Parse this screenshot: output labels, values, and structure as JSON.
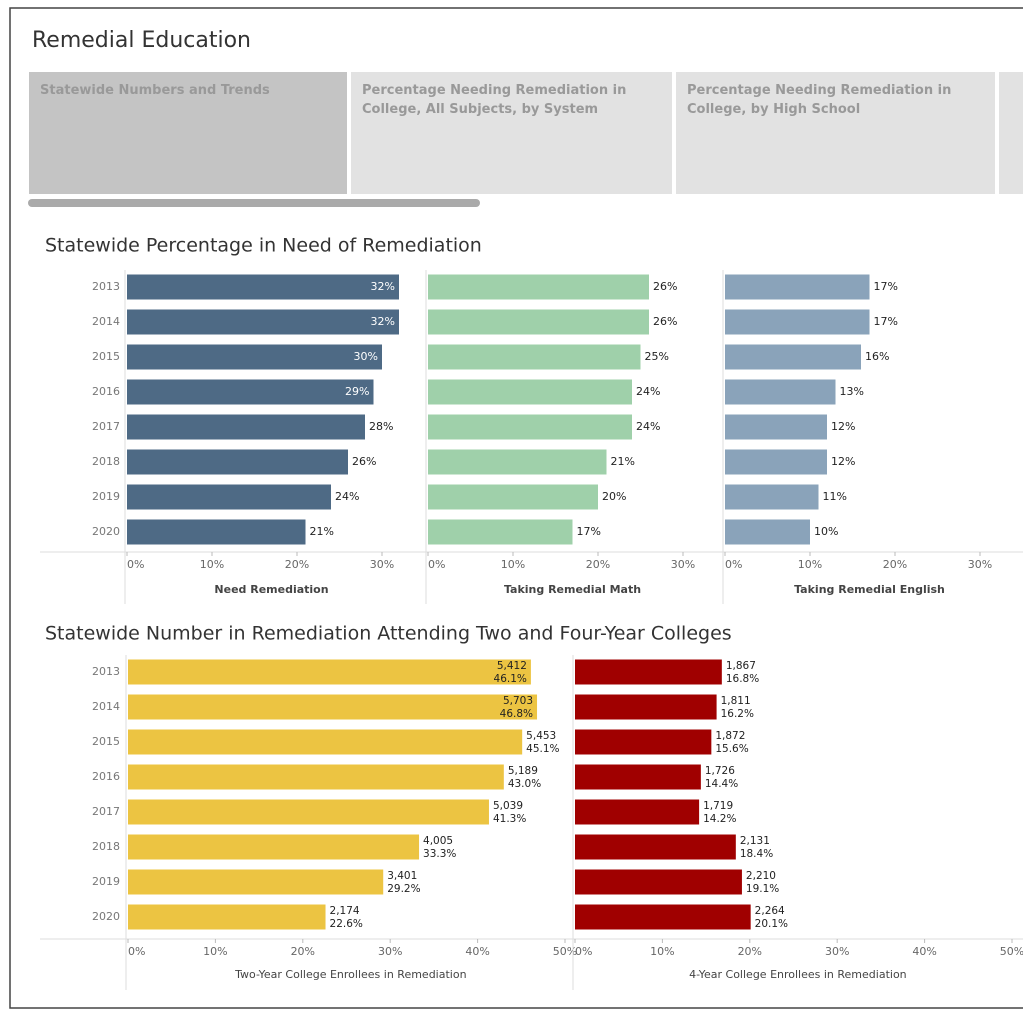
{
  "header": {
    "title": "Remedial Education"
  },
  "tabs": [
    "Statewide Numbers and Trends",
    "Percentage Needing Remediation in College, All Subjects, by System",
    "Percentage Needing Remediation in College, by High School"
  ],
  "chart_data": [
    {
      "type": "bar",
      "orientation": "horizontal",
      "title": "Statewide Percentage in Need of Remediation",
      "categories": [
        "2013",
        "2014",
        "2015",
        "2016",
        "2017",
        "2018",
        "2019",
        "2020"
      ],
      "panels": [
        {
          "x_label": "Need Remediation",
          "color": "#4e6a85",
          "values": [
            32,
            32,
            30,
            29,
            28,
            26,
            24,
            21
          ],
          "value_labels": [
            "32%",
            "32%",
            "30%",
            "29%",
            "28%",
            "26%",
            "24%",
            "21%"
          ],
          "xlim": [
            0,
            34
          ],
          "xticks": [
            {
              "value": 0,
              "label": "0%"
            },
            {
              "value": 10,
              "label": "10%"
            },
            {
              "value": 20,
              "label": "20%"
            },
            {
              "value": 30,
              "label": "30%"
            }
          ]
        },
        {
          "x_label": "Taking Remedial Math",
          "color": "#9fd0aa",
          "values": [
            26,
            26,
            25,
            24,
            24,
            21,
            20,
            17
          ],
          "value_labels": [
            "26%",
            "26%",
            "25%",
            "24%",
            "24%",
            "21%",
            "20%",
            "17%"
          ],
          "xlim": [
            0,
            34
          ],
          "xticks": [
            {
              "value": 0,
              "label": "0%"
            },
            {
              "value": 10,
              "label": "10%"
            },
            {
              "value": 20,
              "label": "20%"
            },
            {
              "value": 30,
              "label": "30%"
            }
          ]
        },
        {
          "x_label": "Taking Remedial English",
          "color": "#8aa3ba",
          "values": [
            17,
            17,
            16,
            13,
            12,
            12,
            11,
            10
          ],
          "value_labels": [
            "17%",
            "17%",
            "16%",
            "13%",
            "12%",
            "12%",
            "11%",
            "10%"
          ],
          "xlim": [
            0,
            34
          ],
          "xticks": [
            {
              "value": 0,
              "label": "0%"
            },
            {
              "value": 10,
              "label": "10%"
            },
            {
              "value": 20,
              "label": "20%"
            },
            {
              "value": 30,
              "label": "30%"
            }
          ]
        }
      ]
    },
    {
      "type": "bar",
      "orientation": "horizontal",
      "title": "Statewide Number in Remediation Attending Two and Four-Year Colleges",
      "categories": [
        "2013",
        "2014",
        "2015",
        "2016",
        "2017",
        "2018",
        "2019",
        "2020"
      ],
      "panels": [
        {
          "x_label": "Two-Year College Enrollees in Remediation",
          "color": "#ecc442",
          "values": [
            46.1,
            46.8,
            45.1,
            43.0,
            41.3,
            33.3,
            29.2,
            22.6
          ],
          "value_labels": [
            "46.1%",
            "46.8%",
            "45.1%",
            "43.0%",
            "41.3%",
            "33.3%",
            "29.2%",
            "22.6%"
          ],
          "count_labels": [
            "5,412",
            "5,703",
            "5,453",
            "5,189",
            "5,039",
            "4,005",
            "3,401",
            "2,174"
          ],
          "xlim": [
            0,
            51
          ],
          "xticks": [
            {
              "value": 0,
              "label": "0%"
            },
            {
              "value": 10,
              "label": "10%"
            },
            {
              "value": 20,
              "label": "20%"
            },
            {
              "value": 30,
              "label": "30%"
            },
            {
              "value": 40,
              "label": "40%"
            },
            {
              "value": 50,
              "label": "50%"
            }
          ]
        },
        {
          "x_label": "4-Year College Enrollees in Remediation",
          "color": "#a00000",
          "values": [
            16.8,
            16.2,
            15.6,
            14.4,
            14.2,
            18.4,
            19.1,
            20.1
          ],
          "value_labels": [
            "16.8%",
            "16.2%",
            "15.6%",
            "14.4%",
            "14.2%",
            "18.4%",
            "19.1%",
            "20.1%"
          ],
          "count_labels": [
            "1,867",
            "1,811",
            "1,872",
            "1,726",
            "1,719",
            "2,131",
            "2,210",
            "2,264"
          ],
          "xlim": [
            0,
            51
          ],
          "xticks": [
            {
              "value": 0,
              "label": "0%"
            },
            {
              "value": 10,
              "label": "10%"
            },
            {
              "value": 20,
              "label": "20%"
            },
            {
              "value": 30,
              "label": "30%"
            },
            {
              "value": 40,
              "label": "40%"
            },
            {
              "value": 50,
              "label": "50%"
            }
          ]
        }
      ]
    }
  ]
}
